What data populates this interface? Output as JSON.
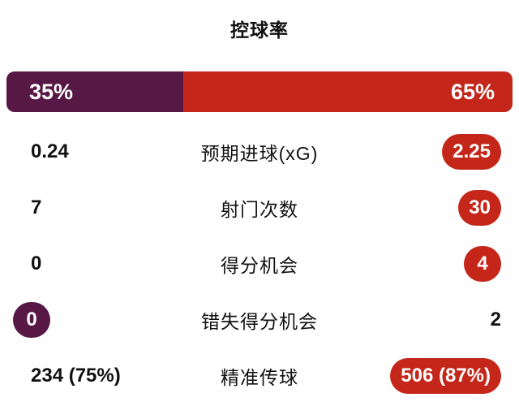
{
  "title": "控球率",
  "colors": {
    "home": "#571845",
    "away": "#c4271a",
    "text": "#111111",
    "background": "#ffffff"
  },
  "possession": {
    "home_label": "35%",
    "away_label": "65%",
    "home_pct": 35,
    "away_pct": 65
  },
  "stats": [
    {
      "label": "预期进球(xG)",
      "home": "0.24",
      "away": "2.25",
      "highlight": "away"
    },
    {
      "label": "射门次数",
      "home": "7",
      "away": "30",
      "highlight": "away"
    },
    {
      "label": "得分机会",
      "home": "0",
      "away": "4",
      "highlight": "away"
    },
    {
      "label": "错失得分机会",
      "home": "0",
      "away": "2",
      "highlight": "home"
    },
    {
      "label": "精准传球",
      "home": "234 (75%)",
      "away": "506 (87%)",
      "highlight": "away"
    }
  ],
  "chart_data": {
    "type": "bar",
    "title": "控球率",
    "categories": [
      "控球率"
    ],
    "series": [
      {
        "name": "left-team",
        "values": [
          35
        ],
        "color": "#571845"
      },
      {
        "name": "right-team",
        "values": [
          65
        ],
        "color": "#c4271a"
      }
    ],
    "stats_table": [
      {
        "label": "预期进球(xG)",
        "left": 0.24,
        "right": 2.25,
        "winner": "right"
      },
      {
        "label": "射门次数",
        "left": 7,
        "right": 30,
        "winner": "right"
      },
      {
        "label": "得分机会",
        "left": 0,
        "right": 4,
        "winner": "right"
      },
      {
        "label": "错失得分机会",
        "left": 0,
        "right": 2,
        "winner": "left"
      },
      {
        "label": "精准传球",
        "left": "234 (75%)",
        "right": "506 (87%)",
        "winner": "right"
      }
    ],
    "legend_position": "none",
    "grid": false
  }
}
